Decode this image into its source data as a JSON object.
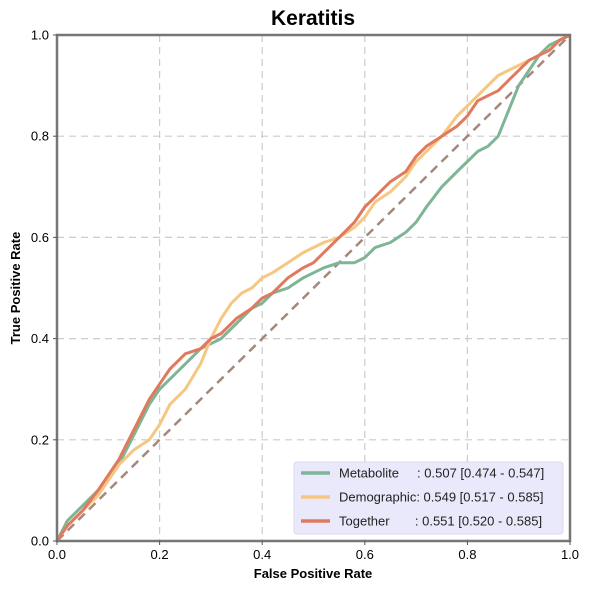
{
  "chart_data": {
    "type": "line",
    "title": "Keratitis",
    "xlabel": "False Positive Rate",
    "ylabel": "True Positive Rate",
    "xlim": [
      0,
      1
    ],
    "ylim": [
      0,
      1
    ],
    "xticks": [
      "0.0",
      "0.2",
      "0.4",
      "0.6",
      "0.8",
      "1.0"
    ],
    "yticks": [
      "0.0",
      "0.2",
      "0.4",
      "0.6",
      "0.8",
      "1.0"
    ],
    "grid": true,
    "legend_position": "bottom-right",
    "chance_line": {
      "color": "#a5877e",
      "x": [
        0,
        1
      ],
      "y": [
        0,
        1
      ]
    },
    "series": [
      {
        "name": "Metabolite",
        "legend_label": "Metabolite     : 0.507 [0.474 - 0.547]",
        "color": "#7fb597",
        "x": [
          0,
          0.02,
          0.05,
          0.08,
          0.1,
          0.12,
          0.14,
          0.16,
          0.18,
          0.2,
          0.22,
          0.25,
          0.28,
          0.3,
          0.32,
          0.35,
          0.38,
          0.4,
          0.42,
          0.45,
          0.48,
          0.5,
          0.52,
          0.55,
          0.58,
          0.6,
          0.62,
          0.65,
          0.68,
          0.7,
          0.72,
          0.75,
          0.78,
          0.8,
          0.82,
          0.84,
          0.86,
          0.88,
          0.9,
          0.92,
          0.94,
          0.96,
          0.98,
          1.0
        ],
        "y": [
          0,
          0.04,
          0.07,
          0.1,
          0.12,
          0.15,
          0.19,
          0.23,
          0.27,
          0.3,
          0.32,
          0.35,
          0.38,
          0.39,
          0.4,
          0.43,
          0.46,
          0.47,
          0.49,
          0.5,
          0.52,
          0.53,
          0.54,
          0.55,
          0.55,
          0.56,
          0.58,
          0.59,
          0.61,
          0.63,
          0.66,
          0.7,
          0.73,
          0.75,
          0.77,
          0.78,
          0.8,
          0.85,
          0.9,
          0.93,
          0.96,
          0.98,
          0.99,
          1.0
        ]
      },
      {
        "name": "Demographic",
        "legend_label": "Demographic: 0.549 [0.517 - 0.585]",
        "color": "#f5c781",
        "x": [
          0,
          0.02,
          0.05,
          0.08,
          0.1,
          0.12,
          0.15,
          0.18,
          0.2,
          0.22,
          0.25,
          0.28,
          0.3,
          0.32,
          0.34,
          0.36,
          0.38,
          0.4,
          0.42,
          0.45,
          0.48,
          0.5,
          0.52,
          0.55,
          0.58,
          0.6,
          0.62,
          0.65,
          0.68,
          0.7,
          0.72,
          0.75,
          0.78,
          0.8,
          0.82,
          0.84,
          0.86,
          0.88,
          0.9,
          0.92,
          0.94,
          0.96,
          0.98,
          1.0
        ],
        "y": [
          0,
          0.03,
          0.06,
          0.09,
          0.12,
          0.15,
          0.18,
          0.2,
          0.23,
          0.27,
          0.3,
          0.35,
          0.4,
          0.44,
          0.47,
          0.49,
          0.5,
          0.52,
          0.53,
          0.55,
          0.57,
          0.58,
          0.59,
          0.6,
          0.62,
          0.64,
          0.67,
          0.69,
          0.72,
          0.75,
          0.77,
          0.8,
          0.84,
          0.86,
          0.88,
          0.9,
          0.92,
          0.93,
          0.94,
          0.95,
          0.96,
          0.97,
          0.99,
          1.0
        ]
      },
      {
        "name": "Together",
        "legend_label": "Together       : 0.551 [0.520 - 0.585]",
        "color": "#e07a5f",
        "x": [
          0,
          0.02,
          0.05,
          0.08,
          0.1,
          0.12,
          0.14,
          0.16,
          0.18,
          0.2,
          0.22,
          0.25,
          0.28,
          0.3,
          0.32,
          0.35,
          0.38,
          0.4,
          0.42,
          0.45,
          0.48,
          0.5,
          0.52,
          0.55,
          0.58,
          0.6,
          0.62,
          0.65,
          0.68,
          0.7,
          0.72,
          0.75,
          0.78,
          0.8,
          0.82,
          0.84,
          0.86,
          0.88,
          0.9,
          0.92,
          0.94,
          0.96,
          0.98,
          1.0
        ],
        "y": [
          0,
          0.03,
          0.06,
          0.1,
          0.13,
          0.16,
          0.2,
          0.24,
          0.28,
          0.31,
          0.34,
          0.37,
          0.38,
          0.4,
          0.41,
          0.44,
          0.46,
          0.48,
          0.49,
          0.52,
          0.54,
          0.55,
          0.57,
          0.6,
          0.63,
          0.66,
          0.68,
          0.71,
          0.73,
          0.76,
          0.78,
          0.8,
          0.82,
          0.84,
          0.87,
          0.88,
          0.89,
          0.91,
          0.93,
          0.95,
          0.96,
          0.97,
          0.99,
          1.0
        ]
      }
    ]
  }
}
